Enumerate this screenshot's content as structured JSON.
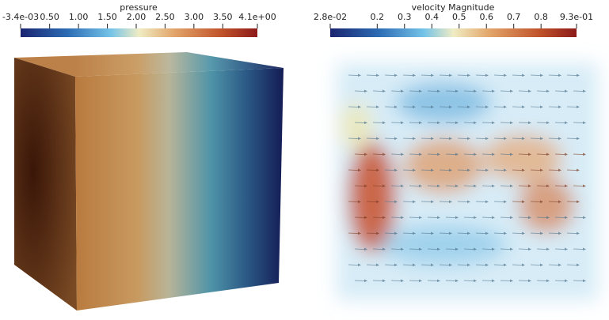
{
  "panels": [
    {
      "colorbar": {
        "title": "pressure",
        "min": {
          "value": -0.0034,
          "label": "-3.4e-03"
        },
        "max": {
          "value": 4.1,
          "label": "4.1e+00"
        },
        "ticks": [
          {
            "value": 0.5,
            "label": "0.50"
          },
          {
            "value": 1,
            "label": "1.00"
          },
          {
            "value": 1.5,
            "label": "1.50"
          },
          {
            "value": 2,
            "label": "2.00"
          },
          {
            "value": 2.5,
            "label": "2.50"
          },
          {
            "value": 3,
            "label": "3.00"
          },
          {
            "value": 3.5,
            "label": "3.50"
          }
        ]
      }
    },
    {
      "colorbar": {
        "title": "velocity Magnitude",
        "min": {
          "value": 0.028,
          "label": "2.8e-02"
        },
        "max": {
          "value": 0.93,
          "label": "9.3e-01"
        },
        "ticks": [
          0.2,
          0.3,
          0.4,
          0.5,
          0.6,
          0.7,
          0.8
        ]
      }
    }
  ]
}
